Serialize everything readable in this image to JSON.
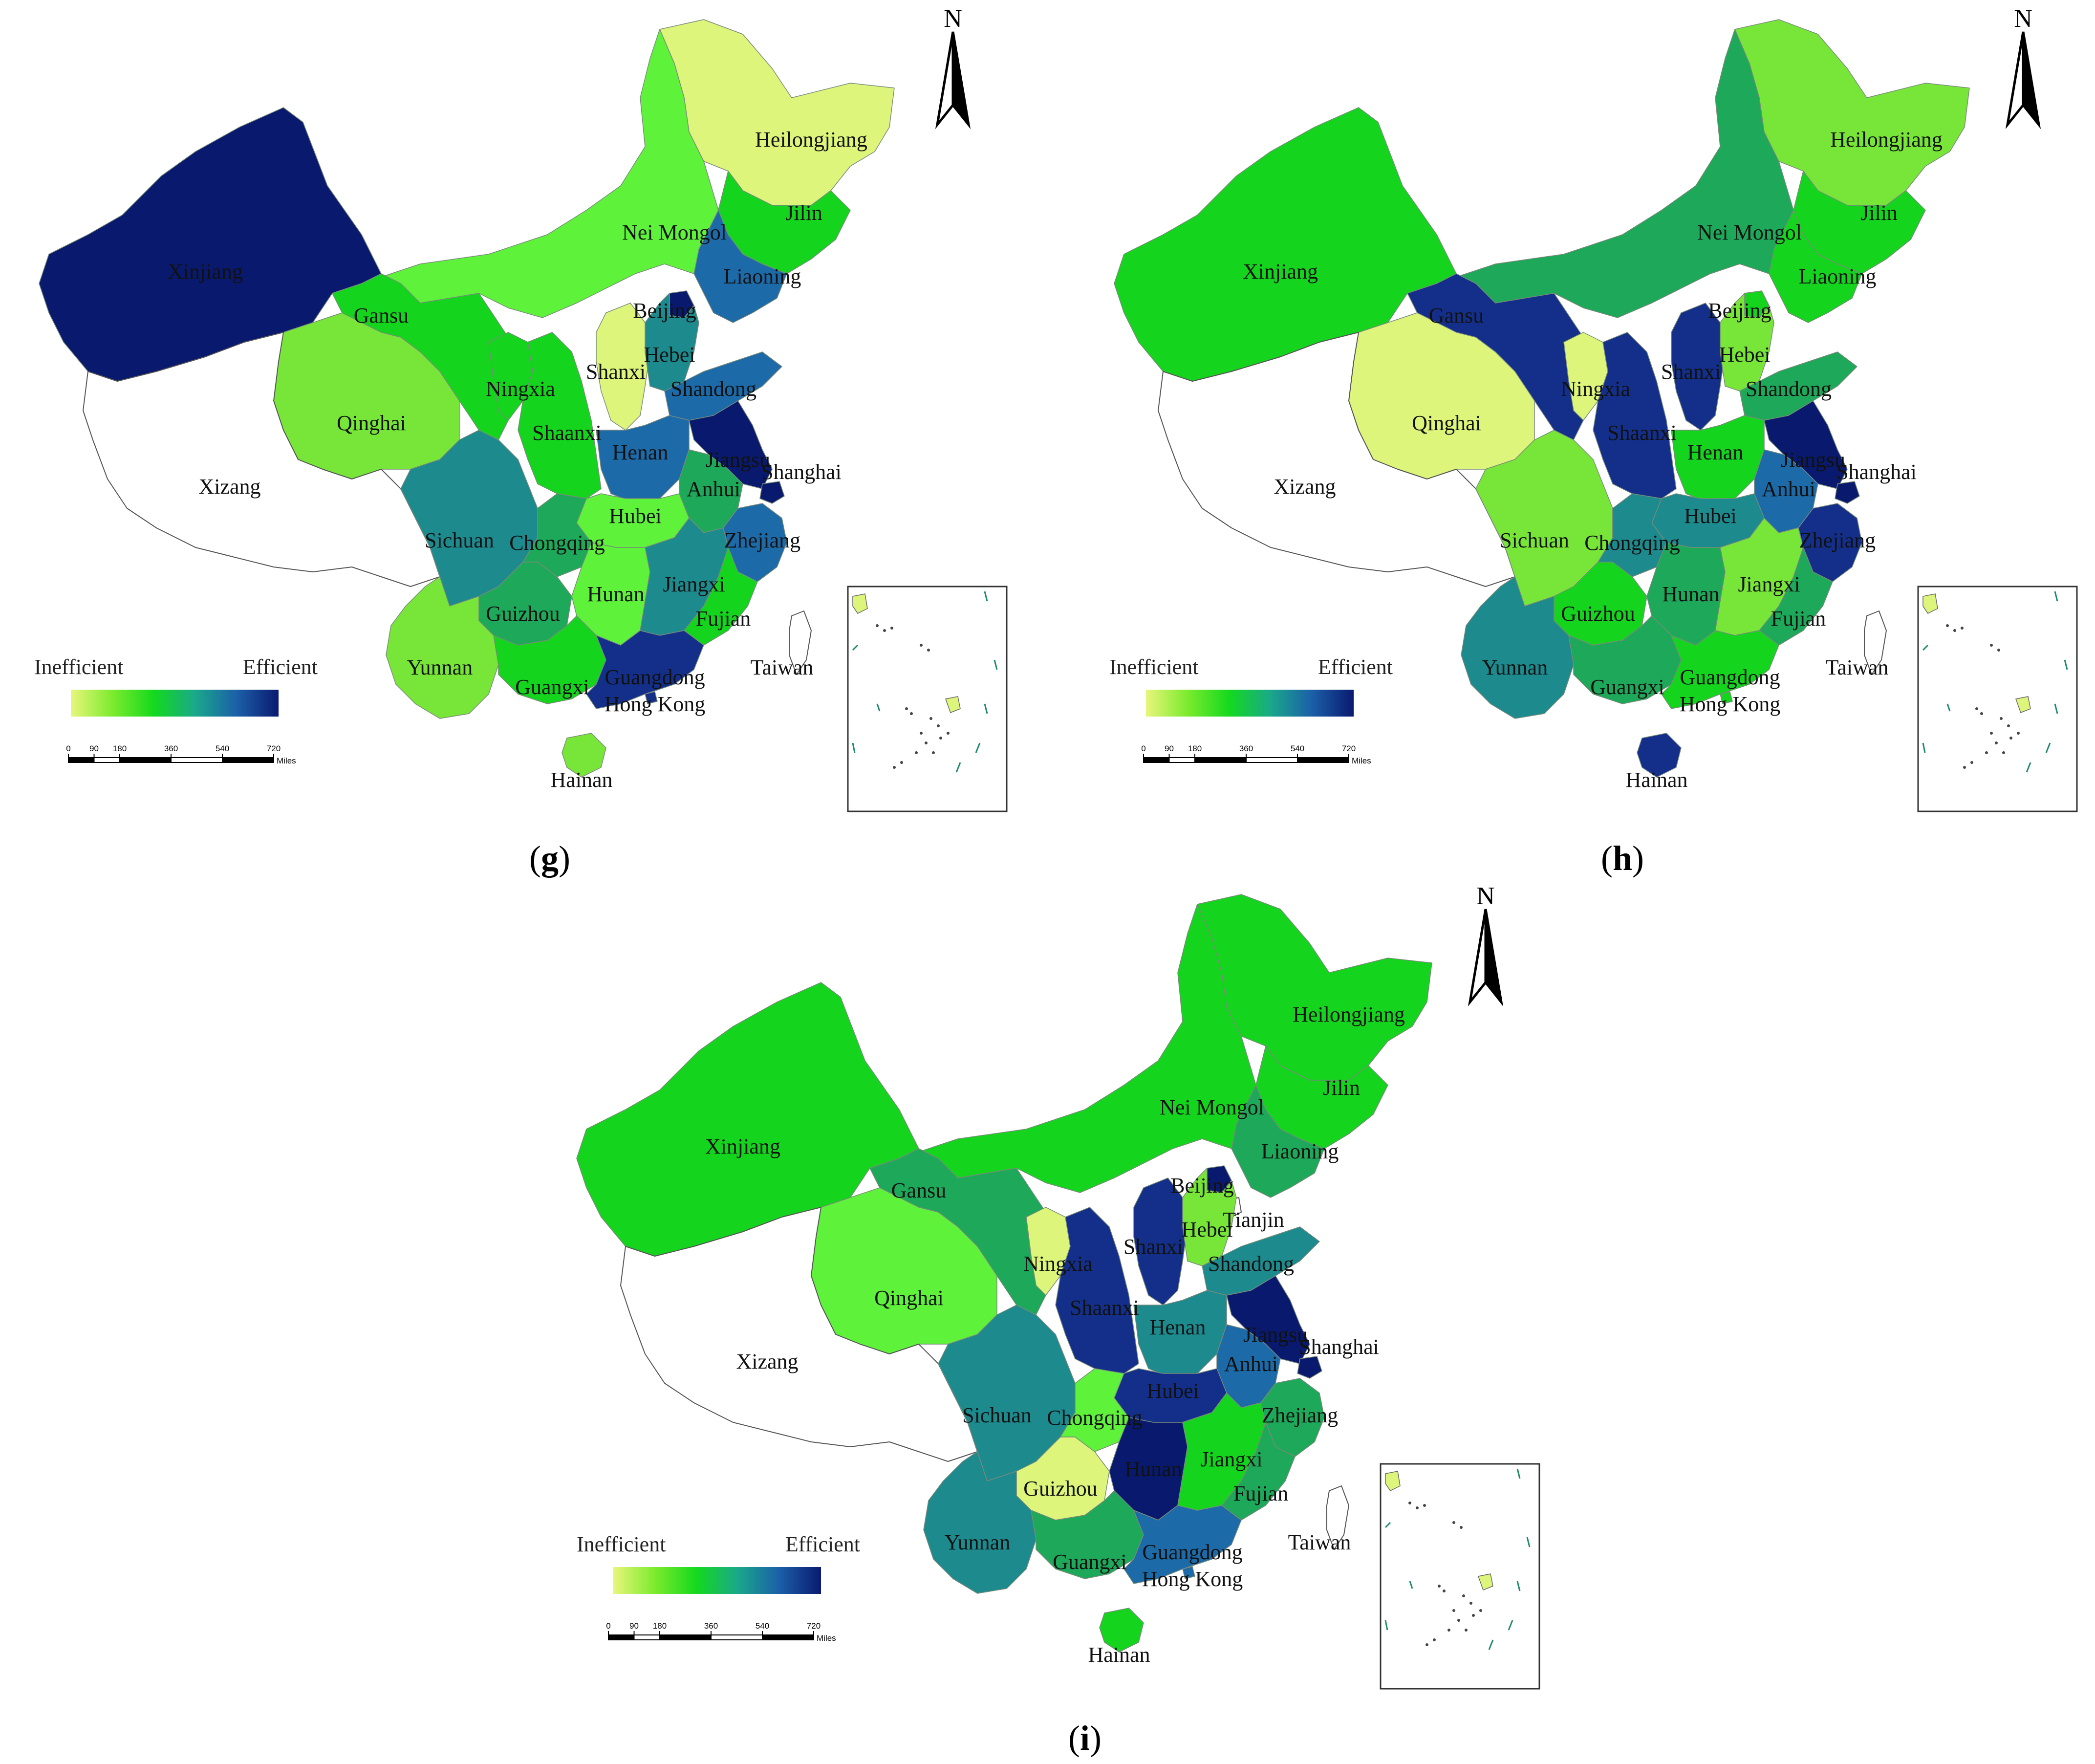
{
  "legend": {
    "low_label": "Inefficient",
    "high_label": "Efficient",
    "gradient_colors": [
      "#e8f67c",
      "#7ceb2e",
      "#14d91e",
      "#1aa88a",
      "#1b5fa8",
      "#0a1a70"
    ]
  },
  "scale_bar": {
    "ticks": [
      "0",
      "90",
      "180",
      "360",
      "540",
      "720"
    ],
    "unit": "Miles"
  },
  "north_arrow": {
    "label": "N"
  },
  "class_colors": {
    "none": "#ffffff",
    "1": "#dcf57a",
    "2": "#78e638",
    "3": "#5ef23b",
    "4": "#14d41e",
    "5": "#1ea85a",
    "6": "#1d8a8e",
    "7": "#1c6aa8",
    "8": "#132f8a",
    "9": "#091a6e"
  },
  "panels": [
    {
      "id": "g",
      "caption_open": "(",
      "caption_letter": "g",
      "caption_close": ")",
      "provinces": [
        {
          "name": "Heilongjiang",
          "class": "1"
        },
        {
          "name": "Jilin",
          "class": "4"
        },
        {
          "name": "Liaoning",
          "class": "7"
        },
        {
          "name": "Nei Mongol",
          "class": "3"
        },
        {
          "name": "Xinjiang",
          "class": "9"
        },
        {
          "name": "Gansu",
          "class": "4"
        },
        {
          "name": "Qinghai",
          "class": "2"
        },
        {
          "name": "Xizang",
          "class": "none"
        },
        {
          "name": "Ningxia",
          "class": "4"
        },
        {
          "name": "Shaanxi",
          "class": "4"
        },
        {
          "name": "Shanxi",
          "class": "1"
        },
        {
          "name": "Beijing",
          "class": "9"
        },
        {
          "name": "Hebei",
          "class": "6"
        },
        {
          "name": "Shandong",
          "class": "7"
        },
        {
          "name": "Henan",
          "class": "7"
        },
        {
          "name": "Jiangsu",
          "class": "9"
        },
        {
          "name": "Shanghai",
          "class": "9"
        },
        {
          "name": "Anhui",
          "class": "5"
        },
        {
          "name": "Hubei",
          "class": "3"
        },
        {
          "name": "Zhejiang",
          "class": "7"
        },
        {
          "name": "Sichuan",
          "class": "6"
        },
        {
          "name": "Chongqing",
          "class": "5"
        },
        {
          "name": "Guizhou",
          "class": "5"
        },
        {
          "name": "Hunan",
          "class": "3"
        },
        {
          "name": "Jiangxi",
          "class": "6"
        },
        {
          "name": "Fujian",
          "class": "4"
        },
        {
          "name": "Yunnan",
          "class": "2"
        },
        {
          "name": "Guangxi",
          "class": "4"
        },
        {
          "name": "Guangdong",
          "class": "8"
        },
        {
          "name": "Hong Kong",
          "class": "8"
        },
        {
          "name": "Hainan",
          "class": "2"
        },
        {
          "name": "Taiwan",
          "class": "none"
        }
      ]
    },
    {
      "id": "h",
      "caption_open": "(",
      "caption_letter": "h",
      "caption_close": ")",
      "provinces": [
        {
          "name": "Heilongjiang",
          "class": "2"
        },
        {
          "name": "Jilin",
          "class": "4"
        },
        {
          "name": "Liaoning",
          "class": "4"
        },
        {
          "name": "Nei Mongol",
          "class": "5"
        },
        {
          "name": "Xinjiang",
          "class": "4"
        },
        {
          "name": "Gansu",
          "class": "8"
        },
        {
          "name": "Qinghai",
          "class": "1"
        },
        {
          "name": "Xizang",
          "class": "none"
        },
        {
          "name": "Ningxia",
          "class": "1"
        },
        {
          "name": "Shaanxi",
          "class": "8"
        },
        {
          "name": "Shanxi",
          "class": "8"
        },
        {
          "name": "Beijing",
          "class": "4"
        },
        {
          "name": "Hebei",
          "class": "2"
        },
        {
          "name": "Shandong",
          "class": "5"
        },
        {
          "name": "Henan",
          "class": "4"
        },
        {
          "name": "Jiangsu",
          "class": "9"
        },
        {
          "name": "Shanghai",
          "class": "9"
        },
        {
          "name": "Anhui",
          "class": "7"
        },
        {
          "name": "Hubei",
          "class": "6"
        },
        {
          "name": "Zhejiang",
          "class": "8"
        },
        {
          "name": "Sichuan",
          "class": "2"
        },
        {
          "name": "Chongqing",
          "class": "6"
        },
        {
          "name": "Guizhou",
          "class": "4"
        },
        {
          "name": "Hunan",
          "class": "5"
        },
        {
          "name": "Jiangxi",
          "class": "2"
        },
        {
          "name": "Fujian",
          "class": "5"
        },
        {
          "name": "Yunnan",
          "class": "6"
        },
        {
          "name": "Guangxi",
          "class": "5"
        },
        {
          "name": "Guangdong",
          "class": "4"
        },
        {
          "name": "Hong Kong",
          "class": "4"
        },
        {
          "name": "Hainan",
          "class": "8"
        },
        {
          "name": "Taiwan",
          "class": "none"
        }
      ]
    },
    {
      "id": "i",
      "caption_open": "(",
      "caption_letter": "i",
      "caption_close": ")",
      "provinces": [
        {
          "name": "Heilongjiang",
          "class": "4"
        },
        {
          "name": "Jilin",
          "class": "4"
        },
        {
          "name": "Liaoning",
          "class": "5"
        },
        {
          "name": "Nei Mongol",
          "class": "4"
        },
        {
          "name": "Xinjiang",
          "class": "4"
        },
        {
          "name": "Gansu",
          "class": "5"
        },
        {
          "name": "Qinghai",
          "class": "3"
        },
        {
          "name": "Xizang",
          "class": "none"
        },
        {
          "name": "Ningxia",
          "class": "1"
        },
        {
          "name": "Shaanxi",
          "class": "8"
        },
        {
          "name": "Shanxi",
          "class": "8"
        },
        {
          "name": "Beijing",
          "class": "9"
        },
        {
          "name": "Tianjin",
          "class": "none"
        },
        {
          "name": "Hebei",
          "class": "2"
        },
        {
          "name": "Shandong",
          "class": "6"
        },
        {
          "name": "Henan",
          "class": "6"
        },
        {
          "name": "Jiangsu",
          "class": "9"
        },
        {
          "name": "Shanghai",
          "class": "9"
        },
        {
          "name": "Anhui",
          "class": "7"
        },
        {
          "name": "Hubei",
          "class": "8"
        },
        {
          "name": "Zhejiang",
          "class": "5"
        },
        {
          "name": "Sichuan",
          "class": "6"
        },
        {
          "name": "Chongqing",
          "class": "3"
        },
        {
          "name": "Guizhou",
          "class": "1"
        },
        {
          "name": "Hunan",
          "class": "9"
        },
        {
          "name": "Jiangxi",
          "class": "4"
        },
        {
          "name": "Fujian",
          "class": "5"
        },
        {
          "name": "Yunnan",
          "class": "6"
        },
        {
          "name": "Guangxi",
          "class": "5"
        },
        {
          "name": "Guangdong",
          "class": "7"
        },
        {
          "name": "Hong Kong",
          "class": "7"
        },
        {
          "name": "Hainan",
          "class": "4"
        },
        {
          "name": "Taiwan",
          "class": "none"
        }
      ]
    }
  ]
}
